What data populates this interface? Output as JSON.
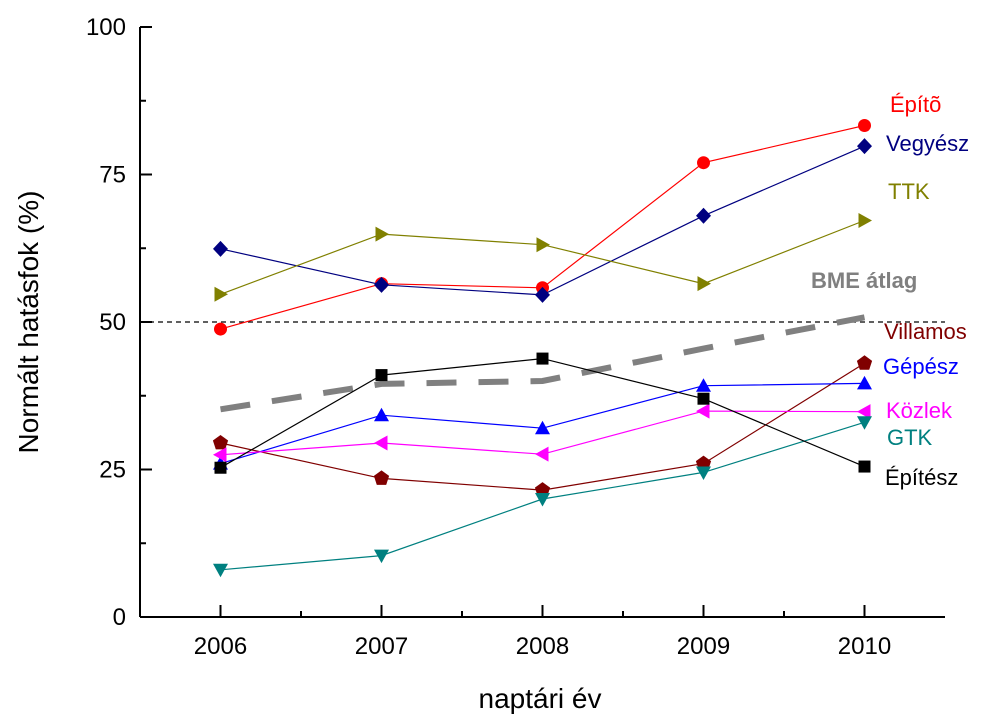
{
  "chart_data": {
    "type": "line",
    "title": "",
    "xlabel": "naptári év",
    "ylabel": "Normált hatásfok (%)",
    "x": [
      2006,
      2007,
      2008,
      2009,
      2010
    ],
    "x_ticks": [
      "2006",
      "2007",
      "2008",
      "2009",
      "2010"
    ],
    "y_ticks": [
      "0",
      "25",
      "50",
      "75",
      "100"
    ],
    "xlim": [
      2005.5,
      2010.5
    ],
    "ylim": [
      0,
      100
    ],
    "grid": false,
    "reference_line": {
      "y": 50,
      "style": "dashed",
      "color": "#000000"
    },
    "series": [
      {
        "name": "Építõ",
        "color": "#ff0000",
        "marker": "circle",
        "values": [
          48.8,
          56.5,
          55.8,
          77.0,
          83.3
        ]
      },
      {
        "name": "Vegyész",
        "color": "#000080",
        "marker": "diamond",
        "values": [
          62.4,
          56.3,
          54.6,
          68.0,
          79.8
        ]
      },
      {
        "name": "TTK",
        "color": "#808000",
        "marker": "triangle-right",
        "values": [
          54.7,
          64.9,
          63.1,
          56.5,
          67.2
        ]
      },
      {
        "name": "BME átlag",
        "color": "#808080",
        "marker": "none",
        "dashed": true,
        "values": [
          35.2,
          39.5,
          40.0,
          45.5,
          50.8
        ]
      },
      {
        "name": "Villamos",
        "color": "#800000",
        "marker": "pentagon",
        "values": [
          29.5,
          23.5,
          21.5,
          26.0,
          43.0
        ]
      },
      {
        "name": "Gépész",
        "color": "#0000ff",
        "marker": "triangle-up",
        "values": [
          26.0,
          34.2,
          32.0,
          39.2,
          39.6
        ]
      },
      {
        "name": "Közlek",
        "color": "#ff00ff",
        "marker": "triangle-left",
        "values": [
          27.5,
          29.5,
          27.6,
          34.9,
          34.8
        ]
      },
      {
        "name": "GTK",
        "color": "#008080",
        "marker": "triangle-down",
        "values": [
          8.0,
          10.4,
          20.0,
          24.5,
          33.0
        ]
      },
      {
        "name": "Építész",
        "color": "#000000",
        "marker": "square",
        "values": [
          25.3,
          41.0,
          43.8,
          37.0,
          25.5
        ]
      }
    ]
  }
}
